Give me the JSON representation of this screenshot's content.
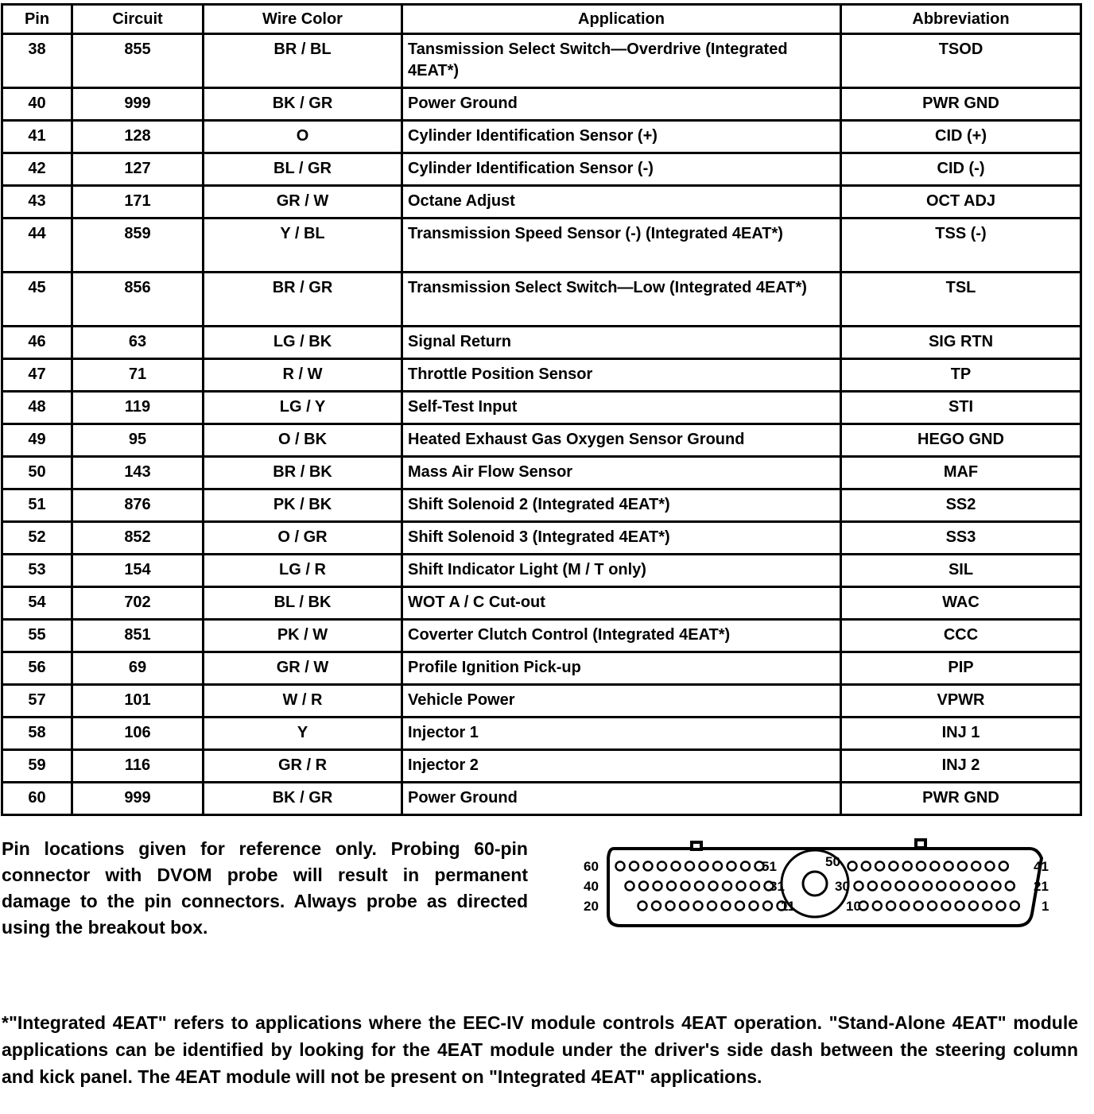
{
  "table": {
    "headers": [
      "Pin",
      "Circuit",
      "Wire Color",
      "Application",
      "Abbreviation"
    ],
    "rows": [
      [
        "38",
        "855",
        "BR / BL",
        "Tansmission Select Switch—Overdrive (Integrated 4EAT*)",
        "TSOD"
      ],
      [
        "40",
        "999",
        "BK / GR",
        "Power Ground",
        "PWR GND"
      ],
      [
        "41",
        "128",
        "O",
        "Cylinder Identification Sensor (+)",
        "CID (+)"
      ],
      [
        "42",
        "127",
        "BL / GR",
        "Cylinder Identification Sensor (-)",
        "CID (-)"
      ],
      [
        "43",
        "171",
        "GR / W",
        "Octane Adjust",
        "OCT ADJ"
      ],
      [
        "44",
        "859",
        "Y / BL",
        "Transmission Speed Sensor (-) (Integrated 4EAT*)",
        "TSS (-)"
      ],
      [
        "45",
        "856",
        "BR / GR",
        "Transmission Select Switch—Low (Integrated 4EAT*)",
        "TSL"
      ],
      [
        "46",
        "63",
        "LG / BK",
        "Signal Return",
        "SIG RTN"
      ],
      [
        "47",
        "71",
        "R / W",
        "Throttle Position Sensor",
        "TP"
      ],
      [
        "48",
        "119",
        "LG / Y",
        "Self-Test Input",
        "STI"
      ],
      [
        "49",
        "95",
        "O / BK",
        "Heated Exhaust Gas Oxygen Sensor Ground",
        "HEGO GND"
      ],
      [
        "50",
        "143",
        "BR / BK",
        "Mass Air Flow Sensor",
        "MAF"
      ],
      [
        "51",
        "876",
        "PK / BK",
        "Shift Solenoid 2 (Integrated 4EAT*)",
        "SS2"
      ],
      [
        "52",
        "852",
        "O / GR",
        "Shift Solenoid 3 (Integrated 4EAT*)",
        "SS3"
      ],
      [
        "53",
        "154",
        "LG / R",
        "Shift Indicator Light (M / T only)",
        "SIL"
      ],
      [
        "54",
        "702",
        "BL / BK",
        "WOT A / C Cut-out",
        "WAC"
      ],
      [
        "55",
        "851",
        "PK / W",
        "Coverter Clutch Control (Integrated 4EAT*)",
        "CCC"
      ],
      [
        "56",
        "69",
        "GR / W",
        "Profile Ignition Pick-up",
        "PIP"
      ],
      [
        "57",
        "101",
        "W / R",
        "Vehicle Power",
        "VPWR"
      ],
      [
        "58",
        "106",
        "Y",
        "Injector 1",
        "INJ 1"
      ],
      [
        "59",
        "116",
        "GR / R",
        "Injector 2",
        "INJ 2"
      ],
      [
        "60",
        "999",
        "BK / GR",
        "Power Ground",
        "PWR GND"
      ]
    ],
    "tall_rows": [
      "38",
      "44",
      "45"
    ]
  },
  "note": "Pin locations given for reference only. Probing 60-pin connector with DVOM probe will result in permanent damage to the pin connectors. Always probe as directed using the breakout box.",
  "connector": {
    "labels": {
      "r1_left": "60",
      "r1_mid_left": "51",
      "r1_mid_right": "50",
      "r1_right": "41",
      "r2_left": "40",
      "r2_mid_left": "31",
      "r2_mid_right": "30",
      "r2_right": "21",
      "r3_left": "20",
      "r3_mid_left": "11",
      "r3_mid_right": "10",
      "r3_right": "1"
    }
  },
  "footnote": "*\"Integrated 4EAT\" refers to applications where the EEC-IV module controls 4EAT operation. \"Stand-Alone 4EAT\" module applications can be identified by looking for the 4EAT module under the driver's side dash between the steering column and kick panel. The 4EAT module will not be present on \"Integrated 4EAT\" applications."
}
